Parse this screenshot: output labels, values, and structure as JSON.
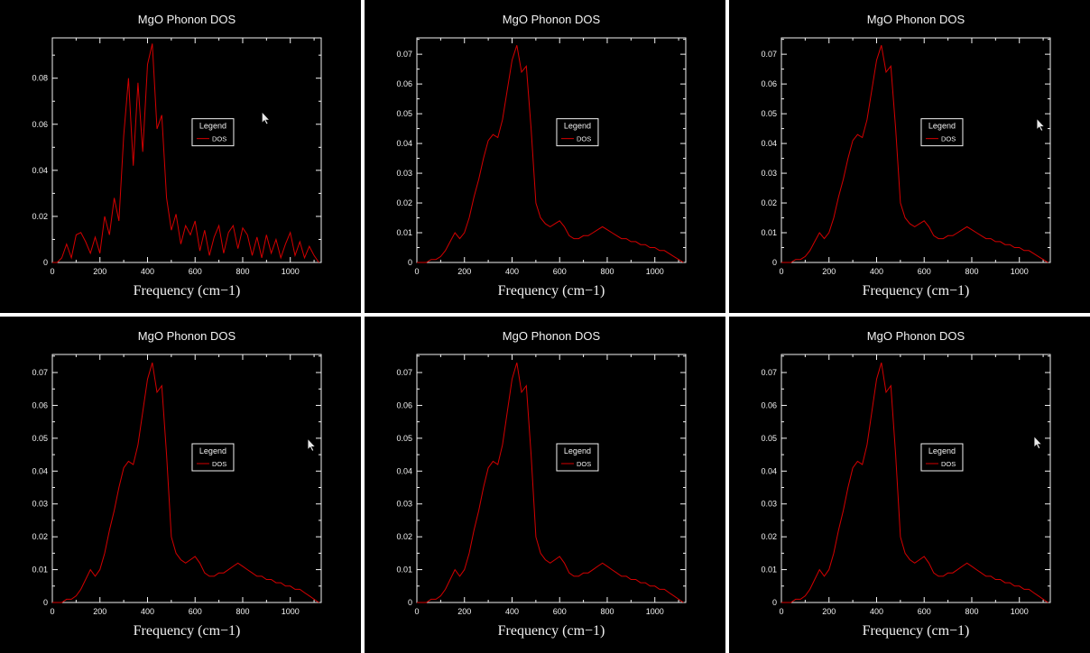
{
  "page": {
    "background": "#ffffff",
    "panel_background": "#000000"
  },
  "chart_data": {
    "style": {
      "axis_color": "#f2f2f2",
      "text_color": "#f2f2f2",
      "line_color": "#d40000",
      "tick_label_size": 9,
      "title_size": 13,
      "xlabel_size": 16,
      "legend_font_size": 9,
      "legend_entry_font_size": 7.5
    },
    "datasets": {
      "x": [
        0,
        20,
        40,
        60,
        80,
        100,
        120,
        140,
        160,
        180,
        200,
        220,
        240,
        260,
        280,
        300,
        320,
        340,
        360,
        380,
        400,
        420,
        440,
        460,
        480,
        500,
        520,
        540,
        560,
        580,
        600,
        620,
        640,
        660,
        680,
        700,
        720,
        740,
        760,
        780,
        800,
        820,
        840,
        860,
        880,
        900,
        920,
        940,
        960,
        980,
        1000,
        1020,
        1040,
        1060,
        1080,
        1100,
        1120
      ],
      "raw": [
        0,
        0,
        0.002,
        0.008,
        0.002,
        0.012,
        0.013,
        0.009,
        0.004,
        0.011,
        0.004,
        0.02,
        0.012,
        0.028,
        0.018,
        0.055,
        0.08,
        0.042,
        0.078,
        0.048,
        0.086,
        0.095,
        0.058,
        0.064,
        0.028,
        0.014,
        0.021,
        0.008,
        0.016,
        0.012,
        0.018,
        0.005,
        0.014,
        0.003,
        0.011,
        0.016,
        0.004,
        0.013,
        0.016,
        0.006,
        0.015,
        0.012,
        0.003,
        0.011,
        0.002,
        0.012,
        0.004,
        0.01,
        0.002,
        0.008,
        0.013,
        0.003,
        0.009,
        0.002,
        0.007,
        0.003,
        0
      ],
      "smooth": [
        0,
        0,
        0,
        0.001,
        0.001,
        0.002,
        0.004,
        0.007,
        0.01,
        0.008,
        0.01,
        0.015,
        0.022,
        0.028,
        0.035,
        0.041,
        0.043,
        0.042,
        0.048,
        0.058,
        0.068,
        0.073,
        0.064,
        0.066,
        0.045,
        0.02,
        0.015,
        0.013,
        0.012,
        0.013,
        0.014,
        0.012,
        0.009,
        0.008,
        0.008,
        0.009,
        0.009,
        0.01,
        0.011,
        0.012,
        0.011,
        0.01,
        0.009,
        0.008,
        0.008,
        0.007,
        0.007,
        0.006,
        0.006,
        0.005,
        0.005,
        0.004,
        0.004,
        0.003,
        0.002,
        0.001,
        0
      ]
    },
    "charts": [
      {
        "type": "line",
        "title": "MgO Phonon DOS",
        "xlabel": "Frequency (cm−1)",
        "ylabel": "",
        "dataset": "raw",
        "xlim": [
          0,
          1130
        ],
        "ylim": [
          0,
          0.0975
        ],
        "xticks": [
          0,
          200,
          400,
          600,
          800,
          1000
        ],
        "xtick_labels": [
          "0",
          "200",
          "400",
          "600",
          "800",
          "1000"
        ],
        "yticks": [
          0,
          0.02,
          0.04,
          0.06,
          0.08
        ],
        "ytick_labels": [
          "0",
          "0.02",
          "0.04",
          "0.06",
          "0.08"
        ],
        "legend": {
          "title": "Legend",
          "entries": [
            {
              "label": "DOS",
              "color": "#d40000"
            }
          ],
          "fx": 0.52,
          "fy": 0.36
        },
        "cursor": {
          "fx": 0.78,
          "fy": 0.33
        }
      },
      {
        "type": "line",
        "title": "MgO Phonon DOS",
        "xlabel": "Frequency (cm−1)",
        "ylabel": "",
        "dataset": "smooth",
        "xlim": [
          0,
          1130
        ],
        "ylim": [
          0,
          0.0755
        ],
        "xticks": [
          0,
          200,
          400,
          600,
          800,
          1000
        ],
        "xtick_labels": [
          "0",
          "200",
          "400",
          "600",
          "800",
          "1000"
        ],
        "yticks": [
          0,
          0.01,
          0.02,
          0.03,
          0.04,
          0.05,
          0.06,
          0.07
        ],
        "ytick_labels": [
          "0",
          "0.01",
          "0.02",
          "0.03",
          "0.04",
          "0.05",
          "0.06",
          "0.07"
        ],
        "legend": {
          "title": "Legend",
          "entries": [
            {
              "label": "DOS",
              "color": "#d40000"
            }
          ],
          "fx": 0.52,
          "fy": 0.36
        },
        "cursor": null
      },
      {
        "type": "line",
        "title": "MgO Phonon DOS",
        "xlabel": "Frequency (cm−1)",
        "ylabel": "",
        "dataset": "smooth",
        "xlim": [
          0,
          1130
        ],
        "ylim": [
          0,
          0.0755
        ],
        "xticks": [
          0,
          200,
          400,
          600,
          800,
          1000
        ],
        "xtick_labels": [
          "0",
          "200",
          "400",
          "600",
          "800",
          "1000"
        ],
        "yticks": [
          0,
          0.01,
          0.02,
          0.03,
          0.04,
          0.05,
          0.06,
          0.07
        ],
        "ytick_labels": [
          "0",
          "0.01",
          "0.02",
          "0.03",
          "0.04",
          "0.05",
          "0.06",
          "0.07"
        ],
        "legend": {
          "title": "Legend",
          "entries": [
            {
              "label": "DOS",
              "color": "#d40000"
            }
          ],
          "fx": 0.52,
          "fy": 0.36
        },
        "cursor": {
          "fx": 0.95,
          "fy": 0.36
        }
      },
      {
        "type": "line",
        "title": "MgO Phonon DOS",
        "xlabel": "Frequency (cm−1)",
        "ylabel": "",
        "dataset": "smooth",
        "xlim": [
          0,
          1130
        ],
        "ylim": [
          0,
          0.0755
        ],
        "xticks": [
          0,
          200,
          400,
          600,
          800,
          1000
        ],
        "xtick_labels": [
          "0",
          "200",
          "400",
          "600",
          "800",
          "1000"
        ],
        "yticks": [
          0,
          0.01,
          0.02,
          0.03,
          0.04,
          0.05,
          0.06,
          0.07
        ],
        "ytick_labels": [
          "0",
          "0.01",
          "0.02",
          "0.03",
          "0.04",
          "0.05",
          "0.06",
          "0.07"
        ],
        "legend": {
          "title": "Legend",
          "entries": [
            {
              "label": "DOS",
              "color": "#d40000"
            }
          ],
          "fx": 0.52,
          "fy": 0.36
        },
        "cursor": {
          "fx": 0.95,
          "fy": 0.34
        }
      },
      {
        "type": "line",
        "title": "MgO Phonon DOS",
        "xlabel": "Frequency (cm−1)",
        "ylabel": "",
        "dataset": "smooth",
        "xlim": [
          0,
          1130
        ],
        "ylim": [
          0,
          0.0755
        ],
        "xticks": [
          0,
          200,
          400,
          600,
          800,
          1000
        ],
        "xtick_labels": [
          "0",
          "200",
          "400",
          "600",
          "800",
          "1000"
        ],
        "yticks": [
          0,
          0.01,
          0.02,
          0.03,
          0.04,
          0.05,
          0.06,
          0.07
        ],
        "ytick_labels": [
          "0",
          "0.01",
          "0.02",
          "0.03",
          "0.04",
          "0.05",
          "0.06",
          "0.07"
        ],
        "legend": {
          "title": "Legend",
          "entries": [
            {
              "label": "DOS",
              "color": "#d40000"
            }
          ],
          "fx": 0.52,
          "fy": 0.36
        },
        "cursor": null
      },
      {
        "type": "line",
        "title": "MgO Phonon DOS",
        "xlabel": "Frequency (cm−1)",
        "ylabel": "",
        "dataset": "smooth",
        "xlim": [
          0,
          1130
        ],
        "ylim": [
          0,
          0.0755
        ],
        "xticks": [
          0,
          200,
          400,
          600,
          800,
          1000
        ],
        "xtick_labels": [
          "0",
          "200",
          "400",
          "600",
          "800",
          "1000"
        ],
        "yticks": [
          0,
          0.01,
          0.02,
          0.03,
          0.04,
          0.05,
          0.06,
          0.07
        ],
        "ytick_labels": [
          "0",
          "0.01",
          "0.02",
          "0.03",
          "0.04",
          "0.05",
          "0.06",
          "0.07"
        ],
        "legend": {
          "title": "Legend",
          "entries": [
            {
              "label": "DOS",
              "color": "#d40000"
            }
          ],
          "fx": 0.52,
          "fy": 0.36
        },
        "cursor": {
          "fx": 0.94,
          "fy": 0.33
        }
      }
    ]
  }
}
